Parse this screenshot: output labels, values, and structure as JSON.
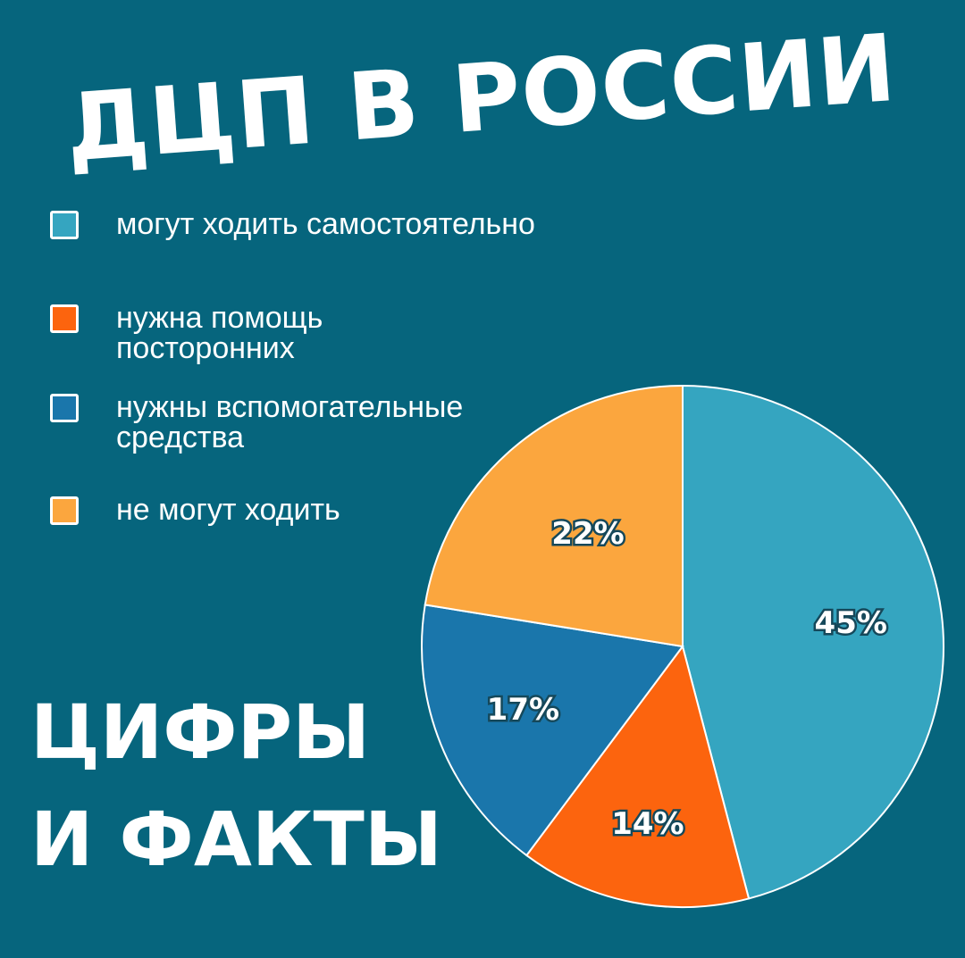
{
  "headline": "ДЦП В РОССИИ",
  "footer": {
    "line1": "ЦИФРЫ",
    "line2": "И ФАКТЫ"
  },
  "colors": {
    "background": "#06657d",
    "walk_independently": "#35a5c0",
    "need_help": "#fc640e",
    "need_aids": "#1a76ab",
    "cannot_walk": "#fba63e"
  },
  "legend": [
    {
      "label": "могут ходить самостоятельно",
      "color": "#35a5c0"
    },
    {
      "label": "нужна помощь\nпосторонних",
      "color": "#fc640e"
    },
    {
      "label": "нужны вспомогательные\nсредства",
      "color": "#1a76ab"
    },
    {
      "label": "не могут ходить",
      "color": "#fba63e"
    }
  ],
  "chart_data": {
    "type": "pie",
    "categories": [
      "могут ходить самостоятельно",
      "нужна помощь посторонних",
      "нужны вспомогательные средства",
      "не могут ходить"
    ],
    "values": [
      45,
      14,
      17,
      22
    ],
    "labels": [
      "45%",
      "14%",
      "17%",
      "22%"
    ],
    "colors": [
      "#35a5c0",
      "#fc640e",
      "#1a76ab",
      "#fba63e"
    ],
    "start": "12 o'clock",
    "direction": "clockwise",
    "legend_placement": "top-left"
  }
}
